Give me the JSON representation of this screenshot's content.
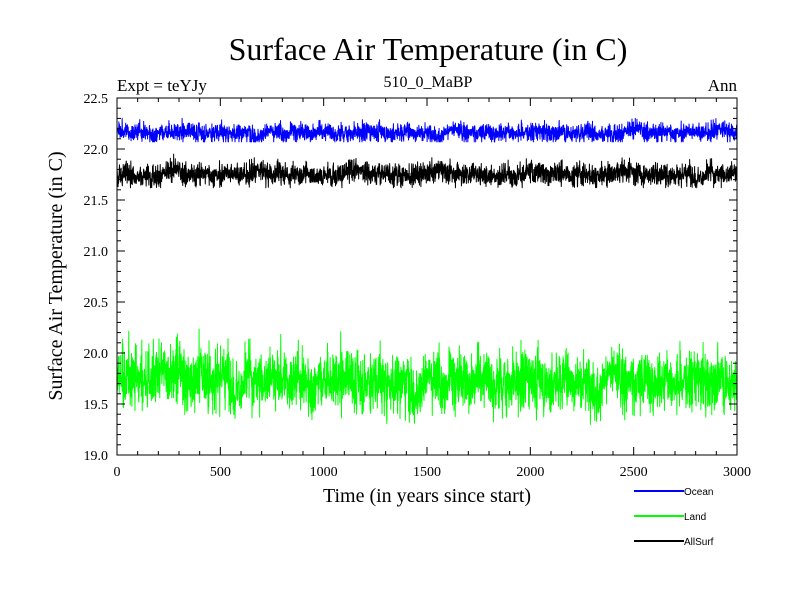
{
  "chart_data": {
    "type": "line",
    "title": "Surface Air Temperature (in C)",
    "subtitle": "510_0_MaBP",
    "left_label": "Expt = teYJy",
    "right_label": "Ann",
    "xlabel": "Time (in years since start)",
    "ylabel": "Surface Air Temperature (in C)",
    "xlim": [
      0,
      3000
    ],
    "ylim": [
      19.0,
      22.5
    ],
    "x_ticks": [
      0,
      500,
      1000,
      1500,
      2000,
      2500,
      3000
    ],
    "x_tick_labels": [
      "0",
      "500",
      "1000",
      "1500",
      "2000",
      "2500",
      "3000"
    ],
    "y_ticks": [
      19.0,
      19.5,
      20.0,
      20.5,
      21.0,
      21.5,
      22.0,
      22.5
    ],
    "y_tick_labels": [
      "19.0",
      "19.5",
      "20.0",
      "20.5",
      "21.0",
      "21.5",
      "22.0",
      "22.5"
    ],
    "grid": false,
    "legend_position": "bottom-right, outside plot",
    "n_points": 3000,
    "series": [
      {
        "name": "Ocean",
        "color": "#0000ff",
        "mean": 22.17,
        "amplitude": 0.05,
        "min": 22.07,
        "max": 22.3
      },
      {
        "name": "Land",
        "color": "#00ff00",
        "mean": 19.75,
        "amplitude": 0.16,
        "min": 19.15,
        "max": 20.28
      },
      {
        "name": "AllSurf",
        "color": "#000000",
        "mean": 21.76,
        "amplitude": 0.06,
        "min": 21.62,
        "max": 21.95
      }
    ]
  }
}
